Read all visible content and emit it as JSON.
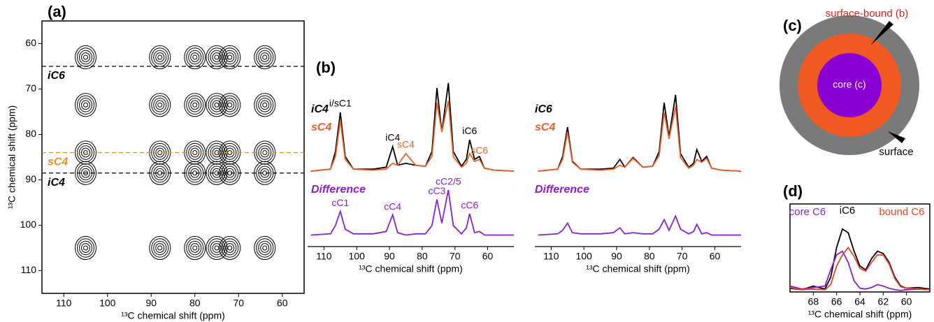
{
  "chart_data": [
    {
      "type": "contour",
      "panel_label": "(a)",
      "xlabel": "¹³C chemical shift (ppm)",
      "ylabel": "¹³C chemical shift (ppm)",
      "xlim": [
        115,
        55
      ],
      "xticks": [
        110,
        100,
        90,
        80,
        70,
        60
      ],
      "ylim": [
        55,
        115
      ],
      "yticks": [
        60,
        70,
        80,
        90,
        100,
        110
      ],
      "color": "#000000",
      "hlines": [
        {
          "text": "iC6",
          "y": 65,
          "color": "#000000"
        },
        {
          "text": "sC4",
          "y": 84,
          "color": "#e8912a"
        },
        {
          "text": "iC4",
          "y": 88.5,
          "color": "#000000"
        }
      ],
      "peaks": {
        "x": [
          105,
          88,
          80,
          75,
          72,
          64,
          105,
          88,
          80,
          75,
          72,
          64,
          105,
          88,
          80,
          75,
          72,
          64,
          105,
          88,
          80,
          75,
          72,
          64,
          105,
          88,
          80,
          75,
          72,
          64
        ],
        "y": [
          63,
          63,
          63,
          63,
          63,
          63,
          73.5,
          73.5,
          73.5,
          73.5,
          73.5,
          73.5,
          84,
          84,
          84,
          84,
          84,
          84,
          88.5,
          88.5,
          88.5,
          88.5,
          88.5,
          88.5,
          105,
          105,
          105,
          105,
          105,
          105
        ]
      }
    },
    {
      "type": "line",
      "panel_label": "(b)",
      "xlabel": "¹³C chemical shift (ppm)",
      "xlim": [
        115,
        52
      ],
      "xticks": [
        110,
        100,
        90,
        80,
        70,
        60
      ],
      "ylim": [
        0,
        100
      ],
      "x": [
        114,
        108,
        106.5,
        105,
        103.5,
        101,
        95,
        91,
        89,
        87.5,
        85,
        82,
        79,
        77,
        75.5,
        74,
        72,
        70.5,
        68,
        66.5,
        65.5,
        64,
        62.5,
        61,
        58,
        52
      ],
      "series": [
        {
          "name": "iC4",
          "color": "#000000",
          "values": [
            0,
            2,
            20,
            60,
            15,
            2,
            2,
            4,
            25,
            6,
            8,
            6,
            5,
            20,
            85,
            40,
            90,
            20,
            5,
            12,
            32,
            12,
            15,
            3,
            1,
            0
          ],
          "labels": [
            {
              "text": "i/sC1",
              "x": 105
            },
            {
              "text": "iC4",
              "x": 89
            },
            {
              "text": "iC6",
              "x": 65.5
            }
          ]
        },
        {
          "name": "sC4",
          "color": "#e8632a",
          "values": [
            0,
            2,
            15,
            52,
            12,
            2,
            1,
            2,
            8,
            6,
            18,
            6,
            5,
            15,
            70,
            40,
            72,
            15,
            4,
            8,
            18,
            10,
            12,
            3,
            1,
            0
          ],
          "labels": [
            {
              "text": "sC4",
              "x": 85
            },
            {
              "text": "sC6",
              "x": 62.5
            }
          ]
        }
      ],
      "difference": {
        "name": "Difference",
        "color": "#8a1fd6",
        "ylim": [
          -5,
          45
        ],
        "values": [
          0,
          1,
          8,
          20,
          5,
          1,
          1,
          3,
          17,
          2,
          0,
          1,
          1,
          8,
          30,
          10,
          38,
          8,
          1,
          6,
          18,
          2,
          3,
          0,
          0,
          0
        ],
        "labels": [
          {
            "text": "cC1",
            "x": 105
          },
          {
            "text": "cC4",
            "x": 89
          },
          {
            "text": "cC3",
            "x": 75.5
          },
          {
            "text": "cC2/5",
            "x": 72
          },
          {
            "text": "cC6",
            "x": 65.5
          }
        ]
      }
    },
    {
      "type": "line",
      "xlabel": "¹³C chemical shift (ppm)",
      "xlim": [
        115,
        52
      ],
      "xticks": [
        110,
        100,
        90,
        80,
        70,
        60
      ],
      "ylim": [
        0,
        100
      ],
      "x": [
        114,
        108,
        106.5,
        105,
        103.5,
        101,
        95,
        91,
        89,
        87.5,
        85,
        82,
        79,
        77,
        75.5,
        74,
        72,
        70.5,
        68,
        66.5,
        65.5,
        64,
        62.5,
        61,
        58,
        52
      ],
      "series": [
        {
          "name": "iC6",
          "color": "#000000",
          "values": [
            0,
            2,
            15,
            45,
            10,
            2,
            2,
            3,
            12,
            4,
            14,
            4,
            5,
            20,
            70,
            35,
            78,
            18,
            4,
            8,
            22,
            10,
            15,
            3,
            1,
            0
          ]
        },
        {
          "name": "sC4",
          "color": "#e8632a",
          "values": [
            0,
            2,
            12,
            40,
            9,
            2,
            1,
            2,
            6,
            4,
            13,
            4,
            5,
            16,
            60,
            33,
            66,
            14,
            3,
            6,
            12,
            9,
            13,
            3,
            1,
            0
          ]
        }
      ],
      "difference": {
        "name": "Difference",
        "color": "#8a1fd6",
        "ylim": [
          -5,
          45
        ],
        "values": [
          0,
          1,
          4,
          10,
          2,
          1,
          1,
          2,
          6,
          1,
          2,
          1,
          1,
          5,
          13,
          4,
          16,
          5,
          1,
          3,
          9,
          1,
          2,
          0,
          0,
          0
        ]
      }
    },
    {
      "type": "line",
      "panel_label": "(d)",
      "xlabel": "¹³C chemical shift (ppm)",
      "xlim": [
        70,
        58
      ],
      "xticks": [
        68,
        66,
        64,
        62,
        60
      ],
      "ylim": [
        0,
        100
      ],
      "frame": true,
      "x": [
        70,
        69,
        68,
        67,
        66.5,
        66,
        65.5,
        65,
        64.5,
        64,
        63.5,
        63,
        62.5,
        62,
        61.5,
        61,
        60.5,
        60,
        59,
        58
      ],
      "series": [
        {
          "name": "iC6",
          "color": "#000000",
          "values": [
            5,
            3,
            8,
            4,
            20,
            60,
            85,
            80,
            55,
            35,
            30,
            45,
            55,
            52,
            40,
            20,
            8,
            5,
            6,
            4
          ]
        },
        {
          "name": "core C6",
          "color": "#8a1fd6",
          "values": [
            8,
            4,
            6,
            8,
            30,
            50,
            55,
            40,
            15,
            5,
            4,
            6,
            10,
            8,
            5,
            3,
            2,
            3,
            4,
            3
          ]
        },
        {
          "name": "bound C6",
          "color": "#e8432a",
          "values": [
            6,
            3,
            4,
            3,
            10,
            35,
            50,
            60,
            48,
            32,
            28,
            40,
            50,
            50,
            38,
            18,
            7,
            5,
            4,
            3
          ]
        }
      ]
    }
  ],
  "diagram": {
    "panel_label": "(c)",
    "bound_label": "surface-bound (b)",
    "core_label": "core (c)",
    "surface_label": "surface"
  }
}
